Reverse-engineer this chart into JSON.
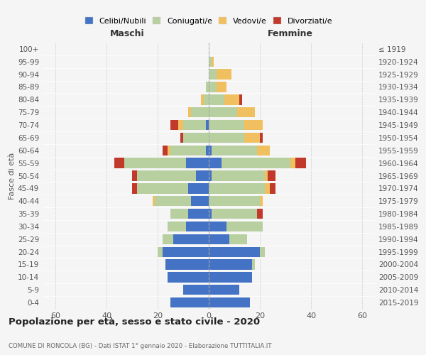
{
  "age_groups": [
    "0-4",
    "5-9",
    "10-14",
    "15-19",
    "20-24",
    "25-29",
    "30-34",
    "35-39",
    "40-44",
    "45-49",
    "50-54",
    "55-59",
    "60-64",
    "65-69",
    "70-74",
    "75-79",
    "80-84",
    "85-89",
    "90-94",
    "95-99",
    "100+"
  ],
  "birth_years": [
    "2015-2019",
    "2010-2014",
    "2005-2009",
    "2000-2004",
    "1995-1999",
    "1990-1994",
    "1985-1989",
    "1980-1984",
    "1975-1979",
    "1970-1974",
    "1965-1969",
    "1960-1964",
    "1955-1959",
    "1950-1954",
    "1945-1949",
    "1940-1944",
    "1935-1939",
    "1930-1934",
    "1925-1929",
    "1920-1924",
    "≤ 1919"
  ],
  "male": {
    "celibi": [
      15,
      10,
      16,
      17,
      18,
      14,
      9,
      8,
      7,
      8,
      5,
      9,
      1,
      0,
      1,
      0,
      0,
      0,
      0,
      0,
      0
    ],
    "coniugati": [
      0,
      0,
      0,
      0,
      2,
      4,
      7,
      7,
      14,
      20,
      23,
      24,
      14,
      10,
      9,
      7,
      2,
      1,
      0,
      0,
      0
    ],
    "vedovi": [
      0,
      0,
      0,
      0,
      0,
      0,
      0,
      0,
      1,
      0,
      0,
      0,
      1,
      0,
      2,
      1,
      1,
      0,
      0,
      0,
      0
    ],
    "divorziati": [
      0,
      0,
      0,
      0,
      0,
      0,
      0,
      0,
      0,
      2,
      2,
      4,
      2,
      1,
      3,
      0,
      0,
      0,
      0,
      0,
      0
    ]
  },
  "female": {
    "nubili": [
      16,
      12,
      17,
      17,
      20,
      8,
      7,
      1,
      0,
      0,
      1,
      5,
      1,
      0,
      0,
      0,
      0,
      0,
      0,
      0,
      0
    ],
    "coniugate": [
      0,
      0,
      0,
      1,
      2,
      7,
      14,
      18,
      20,
      22,
      21,
      27,
      18,
      14,
      14,
      11,
      6,
      3,
      3,
      1,
      0
    ],
    "vedove": [
      0,
      0,
      0,
      0,
      0,
      0,
      0,
      0,
      1,
      2,
      1,
      2,
      5,
      6,
      7,
      7,
      6,
      4,
      6,
      1,
      0
    ],
    "divorziate": [
      0,
      0,
      0,
      0,
      0,
      0,
      0,
      2,
      0,
      2,
      3,
      4,
      0,
      1,
      0,
      0,
      1,
      0,
      0,
      0,
      0
    ]
  },
  "colors": {
    "celibi": "#4472c4",
    "coniugati": "#b8cfa0",
    "vedovi": "#f0c060",
    "divorziati": "#c0392b"
  },
  "xlim": 65,
  "title": "Popolazione per età, sesso e stato civile - 2020",
  "subtitle": "COMUNE DI RONCOLA (BG) - Dati ISTAT 1° gennaio 2020 - Elaborazione TUTTITALIA.IT",
  "ylabel_left": "Fasce di età",
  "legend_labels": [
    "Celibi/Nubili",
    "Coniugati/e",
    "Vedovi/e",
    "Divorziati/e"
  ],
  "background_color": "#f5f5f5"
}
